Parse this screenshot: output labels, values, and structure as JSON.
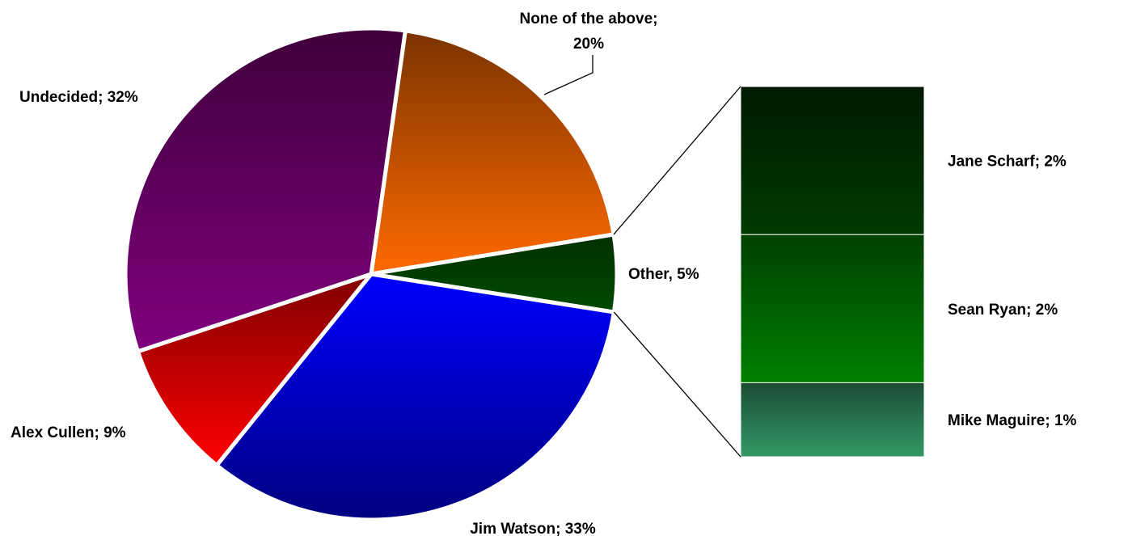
{
  "chart_data": {
    "type": "pie",
    "subtype": "bar-of-pie",
    "title": "",
    "slices": [
      {
        "label": "None of the above",
        "value": 20,
        "display": "20%",
        "separator": ";",
        "colors": [
          "#7a3300",
          "#ff6a00"
        ]
      },
      {
        "label": "Other",
        "value": 5,
        "display": "5%",
        "separator": ",",
        "colors": [
          "#003000",
          "#004a00"
        ]
      },
      {
        "label": "Jim Watson",
        "value": 33,
        "display": "33%",
        "separator": ";",
        "colors": [
          "#0000ff",
          "#000080"
        ]
      },
      {
        "label": "Alex Cullen",
        "value": 9,
        "display": "9%",
        "separator": ";",
        "colors": [
          "#800000",
          "#ff0000"
        ]
      },
      {
        "label": "Undecided",
        "value": 32,
        "display": "32%",
        "separator": ";",
        "colors": [
          "#3f003c",
          "#80007e"
        ]
      }
    ],
    "breakdown_of": "Other",
    "breakdown": [
      {
        "label": "Jane Scharf",
        "value": 2,
        "display": "2%",
        "colors": [
          "#001a00",
          "#003a00"
        ]
      },
      {
        "label": "Sean Ryan",
        "value": 2,
        "display": "2%",
        "colors": [
          "#004000",
          "#008000"
        ]
      },
      {
        "label": "Mike Maguire",
        "value": 1,
        "display": "1%",
        "colors": [
          "#1a4d33",
          "#339966"
        ]
      }
    ]
  }
}
